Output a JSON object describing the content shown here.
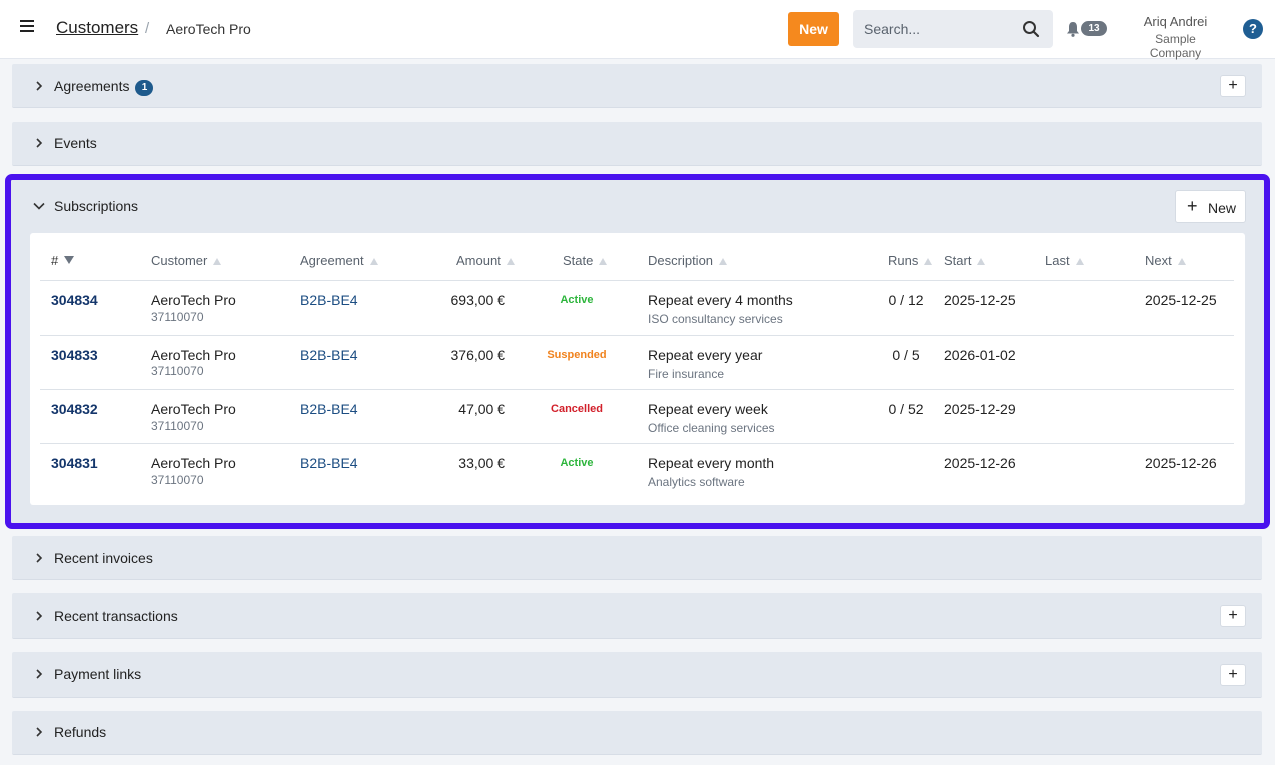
{
  "header": {
    "breadcrumb_root": "Customers",
    "breadcrumb_separator": "/",
    "breadcrumb_current": "AeroTech Pro",
    "new_button": "New",
    "search_placeholder": "Search...",
    "notifications_count": "13",
    "user_name": "Ariq Andrei",
    "user_company": "Sample Company",
    "help_label": "?",
    "accent_color": "#f5891e"
  },
  "panels": {
    "agreements": {
      "title": "Agreements",
      "count": "1",
      "add": "+"
    },
    "events": {
      "title": "Events"
    },
    "subscriptions": {
      "title": "Subscriptions",
      "new_label": "New",
      "new_plus": "+"
    },
    "recent_invoices": {
      "title": "Recent invoices"
    },
    "recent_transactions": {
      "title": "Recent transactions",
      "add": "+"
    },
    "payment_links": {
      "title": "Payment links",
      "add": "+"
    },
    "refunds": {
      "title": "Refunds"
    }
  },
  "table": {
    "columns": {
      "id": "#",
      "customer": "Customer",
      "agreement": "Agreement",
      "amount": "Amount",
      "state": "State",
      "description": "Description",
      "runs": "Runs",
      "start": "Start",
      "last": "Last",
      "next": "Next"
    },
    "rows": [
      {
        "id": "304834",
        "customer": "AeroTech Pro",
        "customer_no": "37110070",
        "agreement": "B2B-BE4",
        "amount": "693,00 €",
        "state": "Active",
        "state_color": "#2db53c",
        "description": "Repeat every 4 months",
        "description_sub": "ISO consultancy services",
        "runs": "0 / 12",
        "start": "2025-12-25",
        "last": "",
        "next": "2025-12-25"
      },
      {
        "id": "304833",
        "customer": "AeroTech Pro",
        "customer_no": "37110070",
        "agreement": "B2B-BE4",
        "amount": "376,00 €",
        "state": "Suspended",
        "state_color": "#f0821d",
        "description": "Repeat every year",
        "description_sub": "Fire insurance",
        "runs": "0 / 5",
        "start": "2026-01-02",
        "last": "",
        "next": ""
      },
      {
        "id": "304832",
        "customer": "AeroTech Pro",
        "customer_no": "37110070",
        "agreement": "B2B-BE4",
        "amount": "47,00 €",
        "state": "Cancelled",
        "state_color": "#d2202b",
        "description": "Repeat every week",
        "description_sub": "Office cleaning services",
        "runs": "0 / 52",
        "start": "2025-12-29",
        "last": "",
        "next": ""
      },
      {
        "id": "304831",
        "customer": "AeroTech Pro",
        "customer_no": "37110070",
        "agreement": "B2B-BE4",
        "amount": "33,00 €",
        "state": "Active",
        "state_color": "#2db53c",
        "description": "Repeat every month",
        "description_sub": "Analytics software",
        "runs": "",
        "start": "2025-12-26",
        "last": "",
        "next": "2025-12-26"
      }
    ]
  }
}
